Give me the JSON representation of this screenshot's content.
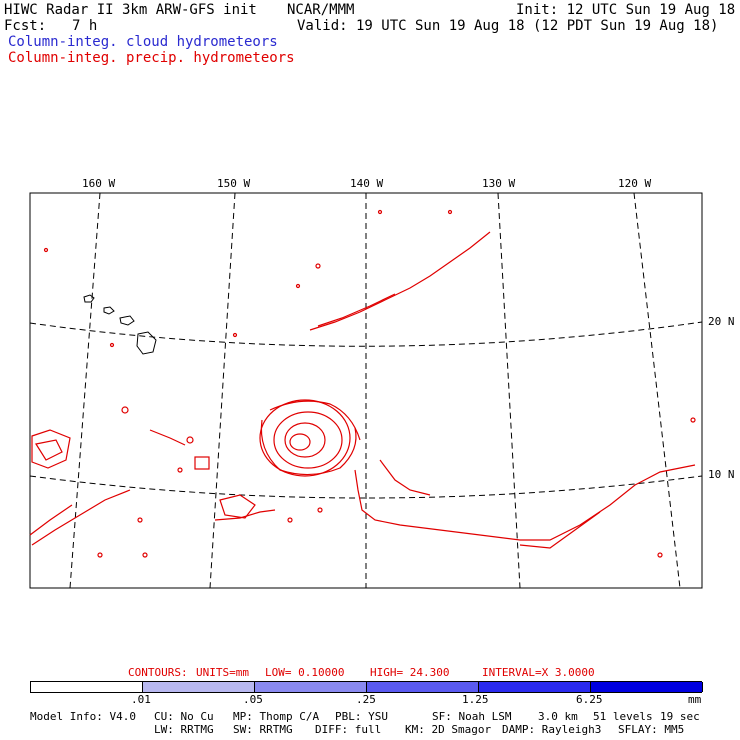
{
  "header": {
    "line1_left": "HIWC Radar II 3km ARW-GFS init",
    "line1_center": "NCAR/MMM",
    "line1_right": "Init: 12 UTC Sun 19 Aug 18",
    "fcst_label": "Fcst:",
    "fcst_value": "7 h",
    "valid": "Valid: 19 UTC Sun 19 Aug 18 (12 PDT Sun 19 Aug 18)",
    "legend_cloud": "Column-integ. cloud hydrometeors",
    "legend_precip": "Column-integ. precip. hydrometeors"
  },
  "map": {
    "lon_labels": [
      "160 W",
      "150 W",
      "140 W",
      "130 W",
      "120 W"
    ],
    "lat_labels": [
      "20 N",
      "10 N"
    ]
  },
  "contour_info": {
    "contours": "CONTOURS:",
    "units": "UNITS=mm",
    "low": "LOW= 0.10000",
    "high": "HIGH= 24.300",
    "interval": "INTERVAL=X 3.0000"
  },
  "colorbar": {
    "ticks": [
      ".01",
      ".05",
      ".25",
      "1.25",
      "6.25"
    ],
    "unit": "mm",
    "colors": [
      "#ffffff",
      "#e8f6fb",
      "#b8b8f0",
      "#8a8af0",
      "#5a5af0",
      "#2a2aee",
      "#0000e0"
    ]
  },
  "model_info": {
    "line1": [
      "Model Info: V4.0",
      "CU: No Cu",
      "MP: Thomp C/A",
      "PBL: YSU",
      "SF: Noah LSM",
      "3.0 km",
      "51 levels",
      "19 sec"
    ],
    "line2": [
      "LW: RRTMG",
      "SW: RRTMG",
      "DIFF: full",
      "KM: 2D Smagor",
      "DAMP: Rayleigh3",
      "SFLAY: MM5"
    ]
  }
}
